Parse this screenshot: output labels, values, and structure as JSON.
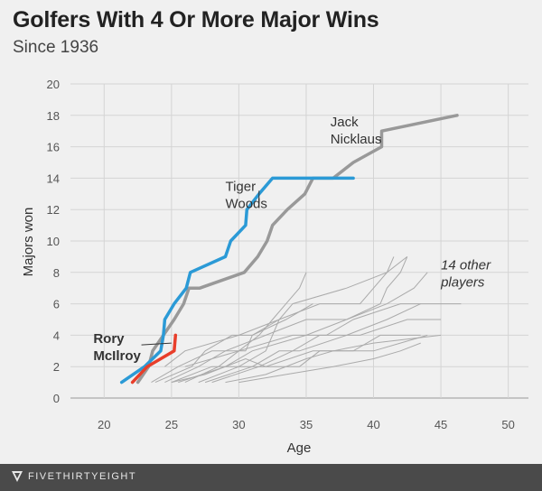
{
  "chart_data": {
    "type": "line",
    "title": "Golfers With 4 Or More Major Wins",
    "subtitle": "Since 1936",
    "xlabel": "Age",
    "ylabel": "Majors won",
    "xlim": [
      17.5,
      51.5
    ],
    "ylim": [
      0,
      20
    ],
    "xticks": [
      20,
      25,
      30,
      35,
      40,
      45,
      50
    ],
    "yticks": [
      0,
      2,
      4,
      6,
      8,
      10,
      12,
      14,
      16,
      18,
      20
    ],
    "grid": true,
    "series": [
      {
        "name": "Jack Nicklaus",
        "color": "#999999",
        "width": 3.5,
        "points": [
          [
            22.5,
            1
          ],
          [
            23.3,
            2
          ],
          [
            23.6,
            3
          ],
          [
            24.4,
            4
          ],
          [
            25.2,
            5
          ],
          [
            25.9,
            6
          ],
          [
            26.3,
            7
          ],
          [
            27.1,
            7
          ],
          [
            30.4,
            8
          ],
          [
            31.4,
            9
          ],
          [
            32.1,
            10
          ],
          [
            32.5,
            11
          ],
          [
            33.6,
            12
          ],
          [
            34.9,
            13
          ],
          [
            35.5,
            14
          ],
          [
            37.0,
            14
          ],
          [
            38.5,
            15
          ],
          [
            40.6,
            16
          ],
          [
            40.6,
            17
          ],
          [
            46.2,
            18
          ]
        ]
      },
      {
        "name": "Tiger Woods",
        "color": "#2b9ad6",
        "width": 3.5,
        "points": [
          [
            21.3,
            1
          ],
          [
            23.0,
            2
          ],
          [
            24.2,
            3
          ],
          [
            24.4,
            4
          ],
          [
            24.5,
            5
          ],
          [
            25.2,
            6
          ],
          [
            26.1,
            7
          ],
          [
            26.4,
            8
          ],
          [
            29.0,
            9
          ],
          [
            29.4,
            10
          ],
          [
            30.5,
            11
          ],
          [
            30.6,
            12
          ],
          [
            31.5,
            13
          ],
          [
            32.5,
            14
          ],
          [
            38.5,
            14
          ]
        ]
      },
      {
        "name": "Rory McIlroy",
        "color": "#e83e2a",
        "width": 3.5,
        "points": [
          [
            22.1,
            1
          ],
          [
            23.2,
            2
          ],
          [
            25.2,
            3
          ],
          [
            25.3,
            4
          ]
        ]
      }
    ],
    "other_series": [
      [
        [
          23.8,
          1
        ],
        [
          26.5,
          2
        ],
        [
          27.5,
          3
        ],
        [
          29.5,
          4
        ],
        [
          31.0,
          4
        ],
        [
          33.0,
          5
        ]
      ],
      [
        [
          24.5,
          1
        ],
        [
          27.0,
          2
        ],
        [
          29.0,
          3
        ],
        [
          32.0,
          4
        ],
        [
          35.0,
          5
        ],
        [
          38.0,
          5
        ],
        [
          40.5,
          6
        ],
        [
          41.0,
          7
        ],
        [
          42.0,
          8
        ],
        [
          42.5,
          9
        ]
      ],
      [
        [
          25.0,
          1
        ],
        [
          28.0,
          2
        ],
        [
          31.0,
          2
        ],
        [
          33.0,
          3
        ],
        [
          34.5,
          3
        ],
        [
          38.0,
          4
        ],
        [
          41.0,
          5
        ],
        [
          43.5,
          6
        ]
      ],
      [
        [
          26.0,
          1
        ],
        [
          28.5,
          2
        ],
        [
          30.0,
          3
        ],
        [
          31.5,
          4
        ],
        [
          32.5,
          5
        ],
        [
          33.5,
          6
        ],
        [
          34.5,
          7
        ],
        [
          35.0,
          8
        ]
      ],
      [
        [
          23.5,
          1
        ],
        [
          25.5,
          2
        ],
        [
          28.0,
          3
        ],
        [
          30.5,
          3
        ],
        [
          31.0,
          4
        ],
        [
          33.5,
          5
        ],
        [
          35.5,
          6
        ]
      ],
      [
        [
          24.5,
          2
        ],
        [
          26.0,
          3
        ],
        [
          30.0,
          4
        ],
        [
          33.0,
          5
        ],
        [
          36.0,
          6
        ],
        [
          39.0,
          6
        ],
        [
          40.0,
          7
        ],
        [
          41.0,
          8
        ],
        [
          41.5,
          9
        ]
      ],
      [
        [
          25.5,
          1
        ],
        [
          29.0,
          2
        ],
        [
          31.0,
          3
        ],
        [
          35.0,
          4
        ],
        [
          38.0,
          5
        ],
        [
          41.0,
          6
        ],
        [
          43.0,
          7
        ],
        [
          44.0,
          8
        ]
      ],
      [
        [
          27.0,
          1
        ],
        [
          30.0,
          2
        ],
        [
          32.0,
          3
        ],
        [
          33.0,
          5
        ],
        [
          34.0,
          6
        ],
        [
          38.0,
          7
        ],
        [
          41.0,
          8
        ],
        [
          42.5,
          9
        ]
      ],
      [
        [
          26.0,
          2
        ],
        [
          30.0,
          3
        ],
        [
          34.0,
          4
        ],
        [
          36.5,
          4
        ],
        [
          38.5,
          5
        ],
        [
          42.0,
          6
        ],
        [
          46.5,
          6
        ]
      ],
      [
        [
          25.0,
          1
        ],
        [
          27.5,
          1.5
        ],
        [
          30.5,
          2.5
        ],
        [
          32.0,
          2
        ],
        [
          35.5,
          3
        ],
        [
          38.5,
          3
        ],
        [
          40.5,
          4
        ],
        [
          43.5,
          4
        ]
      ],
      [
        [
          27.5,
          1
        ],
        [
          31.0,
          2
        ],
        [
          34.5,
          2
        ],
        [
          36.0,
          3
        ],
        [
          40.0,
          3
        ],
        [
          44.0,
          4
        ]
      ],
      [
        [
          29.0,
          1
        ],
        [
          32.0,
          1.5
        ],
        [
          35.0,
          2.5
        ],
        [
          37.0,
          3
        ],
        [
          40.0,
          3.5
        ],
        [
          45.0,
          4
        ]
      ],
      [
        [
          28.0,
          1
        ],
        [
          31.5,
          2
        ],
        [
          34.0,
          3
        ],
        [
          36.0,
          4
        ],
        [
          39.0,
          4
        ],
        [
          42.5,
          5
        ],
        [
          45.0,
          5
        ]
      ],
      [
        [
          30.0,
          1
        ],
        [
          33.5,
          1.5
        ],
        [
          37.0,
          2
        ],
        [
          40.0,
          2.5
        ],
        [
          42.0,
          3
        ],
        [
          43.5,
          3.5
        ]
      ]
    ],
    "annotations": [
      {
        "lines": [
          "Jack",
          "Nicklaus"
        ],
        "x": 36.8,
        "y": 17.3,
        "target": [
          40.5,
          16.3
        ]
      },
      {
        "lines": [
          "Tiger",
          "Woods"
        ],
        "x": 29.0,
        "y": 13.2,
        "target": [
          31.5,
          13.2
        ]
      },
      {
        "lines": [
          "Rory",
          "McIlroy"
        ],
        "x": 19.2,
        "y": 3.5,
        "target": [
          25.0,
          3.5
        ],
        "bold": true
      },
      {
        "lines": [
          "14 other",
          "players"
        ],
        "x": 45.0,
        "y": 8.2,
        "italic": true
      }
    ]
  },
  "brand": "FIVETHIRTYEIGHT"
}
